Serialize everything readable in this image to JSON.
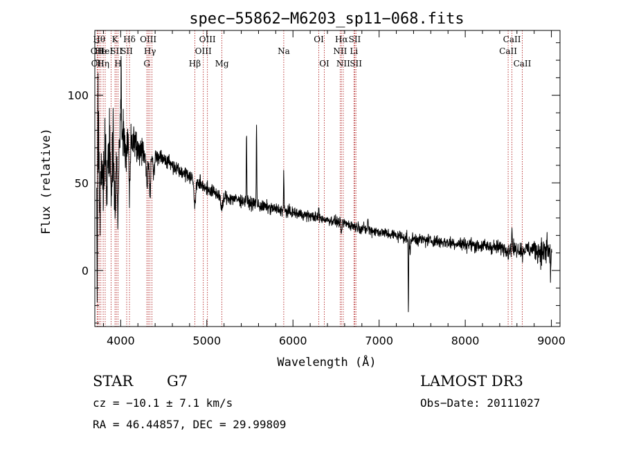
{
  "chart_data": {
    "type": "line",
    "title": "spec−55862−M6203_sp11−068.fits",
    "xlabel": "Wavelength (Å)",
    "ylabel": "Flux (relative)",
    "xlim": [
      3700,
      9100
    ],
    "ylim": [
      -32,
      137
    ],
    "x_ticks": [
      4000,
      5000,
      6000,
      7000,
      8000,
      9000
    ],
    "x_tick_labels": [
      "4000",
      "5000",
      "6000",
      "7000",
      "8000",
      "9000"
    ],
    "y_ticks": [
      0,
      50,
      100
    ],
    "y_tick_labels": [
      "0",
      "50",
      "100"
    ],
    "x_minor_step": 200,
    "y_minor_step": 10,
    "continuum": [
      [
        3720,
        55
      ],
      [
        3800,
        68
      ],
      [
        3900,
        73
      ],
      [
        4000,
        78
      ],
      [
        4100,
        76
      ],
      [
        4200,
        70
      ],
      [
        4300,
        67
      ],
      [
        4400,
        66
      ],
      [
        4500,
        64
      ],
      [
        4600,
        60
      ],
      [
        4700,
        57
      ],
      [
        4800,
        54
      ],
      [
        4900,
        50
      ],
      [
        5000,
        47
      ],
      [
        5100,
        44
      ],
      [
        5200,
        42
      ],
      [
        5400,
        40
      ],
      [
        5600,
        37
      ],
      [
        5800,
        35
      ],
      [
        6000,
        33
      ],
      [
        6200,
        31
      ],
      [
        6400,
        29
      ],
      [
        6600,
        27
      ],
      [
        6800,
        24
      ],
      [
        7000,
        22
      ],
      [
        7200,
        20
      ],
      [
        7400,
        18
      ],
      [
        7600,
        17
      ],
      [
        7800,
        16
      ],
      [
        8000,
        15
      ],
      [
        8200,
        14
      ],
      [
        8400,
        13
      ],
      [
        8600,
        12
      ],
      [
        8800,
        12
      ],
      [
        9000,
        10
      ]
    ],
    "features": [
      {
        "x": 3728,
        "depth": 70,
        "width": 3
      },
      {
        "x": 3735,
        "depth": -55,
        "width": 3
      },
      {
        "x": 3760,
        "depth": 25,
        "width": 6
      },
      {
        "x": 3800,
        "depth": 15,
        "width": 6
      },
      {
        "x": 3835,
        "depth": 22,
        "width": 6
      },
      {
        "x": 3890,
        "depth": 28,
        "width": 8
      },
      {
        "x": 3934,
        "depth": 45,
        "width": 9
      },
      {
        "x": 3969,
        "depth": 42,
        "width": 9
      },
      {
        "x": 4005,
        "depth": -40,
        "width": 3
      },
      {
        "x": 4060,
        "depth": 15,
        "width": 7
      },
      {
        "x": 4102,
        "depth": 32,
        "width": 8
      },
      {
        "x": 4305,
        "depth": 15,
        "width": 10
      },
      {
        "x": 4341,
        "depth": 22,
        "width": 8
      },
      {
        "x": 4383,
        "depth": 12,
        "width": 8
      },
      {
        "x": 4861,
        "depth": 16,
        "width": 9
      },
      {
        "x": 5175,
        "depth": 8,
        "width": 12
      },
      {
        "x": 5461,
        "depth": -40,
        "width": 3
      },
      {
        "x": 5577,
        "depth": -49,
        "width": 3
      },
      {
        "x": 5893,
        "depth": -22,
        "width": 3
      },
      {
        "x": 6300,
        "depth": -5,
        "width": 3
      },
      {
        "x": 6563,
        "depth": 6,
        "width": 6
      },
      {
        "x": 6870,
        "depth": -8,
        "width": 3
      },
      {
        "x": 7340,
        "depth": 45,
        "width": 3
      },
      {
        "x": 7360,
        "depth": 8,
        "width": 5
      },
      {
        "x": 8498,
        "depth": 4,
        "width": 4
      },
      {
        "x": 8542,
        "depth": -14,
        "width": 3
      },
      {
        "x": 8662,
        "depth": 4,
        "width": 4
      },
      {
        "x": 8950,
        "depth": -8,
        "width": 3
      },
      {
        "x": 8990,
        "depth": 12,
        "width": 3
      }
    ],
    "noise_model": [
      [
        3720,
        18
      ],
      [
        4000,
        10
      ],
      [
        4300,
        5
      ],
      [
        4600,
        3
      ],
      [
        6500,
        2
      ],
      [
        8700,
        3
      ],
      [
        9000,
        7
      ]
    ],
    "line_markers": [
      {
        "x": 3727,
        "label": "OII",
        "row": 2
      },
      {
        "x": 3734,
        "label": "OII",
        "row": 3
      },
      {
        "x": 3750,
        "label": "Hθ",
        "row": 1
      },
      {
        "x": 3770,
        "label": "He",
        "row": 2
      },
      {
        "x": 3797,
        "label": "Hη",
        "row": 3
      },
      {
        "x": 3820,
        "label": "HeI",
        "row": 2
      },
      {
        "x": 3889,
        "label": "",
        "row": 0
      },
      {
        "x": 3934,
        "label": "K",
        "row": 1
      },
      {
        "x": 3950,
        "label": "SII",
        "row": 2
      },
      {
        "x": 3969,
        "label": "H",
        "row": 3
      },
      {
        "x": 4070,
        "label": "SII",
        "row": 2
      },
      {
        "x": 4102,
        "label": "Hδ",
        "row": 1
      },
      {
        "x": 4304,
        "label": "G",
        "row": 3
      },
      {
        "x": 4320,
        "label": "OIII",
        "row": 1
      },
      {
        "x": 4340,
        "label": "Hγ",
        "row": 2
      },
      {
        "x": 4363,
        "label": "",
        "row": 0
      },
      {
        "x": 4861,
        "label": "Hβ",
        "row": 3
      },
      {
        "x": 4959,
        "label": "OIII",
        "row": 2
      },
      {
        "x": 5007,
        "label": "OIII",
        "row": 1
      },
      {
        "x": 5175,
        "label": "Mg",
        "row": 3
      },
      {
        "x": 5893,
        "label": "Na",
        "row": 2
      },
      {
        "x": 6300,
        "label": "OI",
        "row": 1
      },
      {
        "x": 6364,
        "label": "OI",
        "row": 3
      },
      {
        "x": 6548,
        "label": "NII",
        "row": 2
      },
      {
        "x": 6563,
        "label": "Hα",
        "row": 1
      },
      {
        "x": 6584,
        "label": "NII",
        "row": 3
      },
      {
        "x": 6708,
        "label": "Li",
        "row": 2
      },
      {
        "x": 6717,
        "label": "SII",
        "row": 1
      },
      {
        "x": 6731,
        "label": "SII",
        "row": 3
      },
      {
        "x": 8498,
        "label": "CaII",
        "row": 2
      },
      {
        "x": 8542,
        "label": "CaII",
        "row": 1
      },
      {
        "x": 8662,
        "label": "CaII",
        "row": 3
      }
    ],
    "colors": {
      "spectrum": "#000000",
      "marker": "#b22222",
      "axis": "#000000"
    }
  },
  "info": {
    "object_class": "STAR",
    "subclass": "G7",
    "survey": "LAMOST DR3",
    "redshift_text": "cz = −10.1 ± 7.1 km/s",
    "obs_date_text": "Obs−Date: 20111027",
    "coords_text": "RA =  46.44857, DEC =  29.99809"
  }
}
